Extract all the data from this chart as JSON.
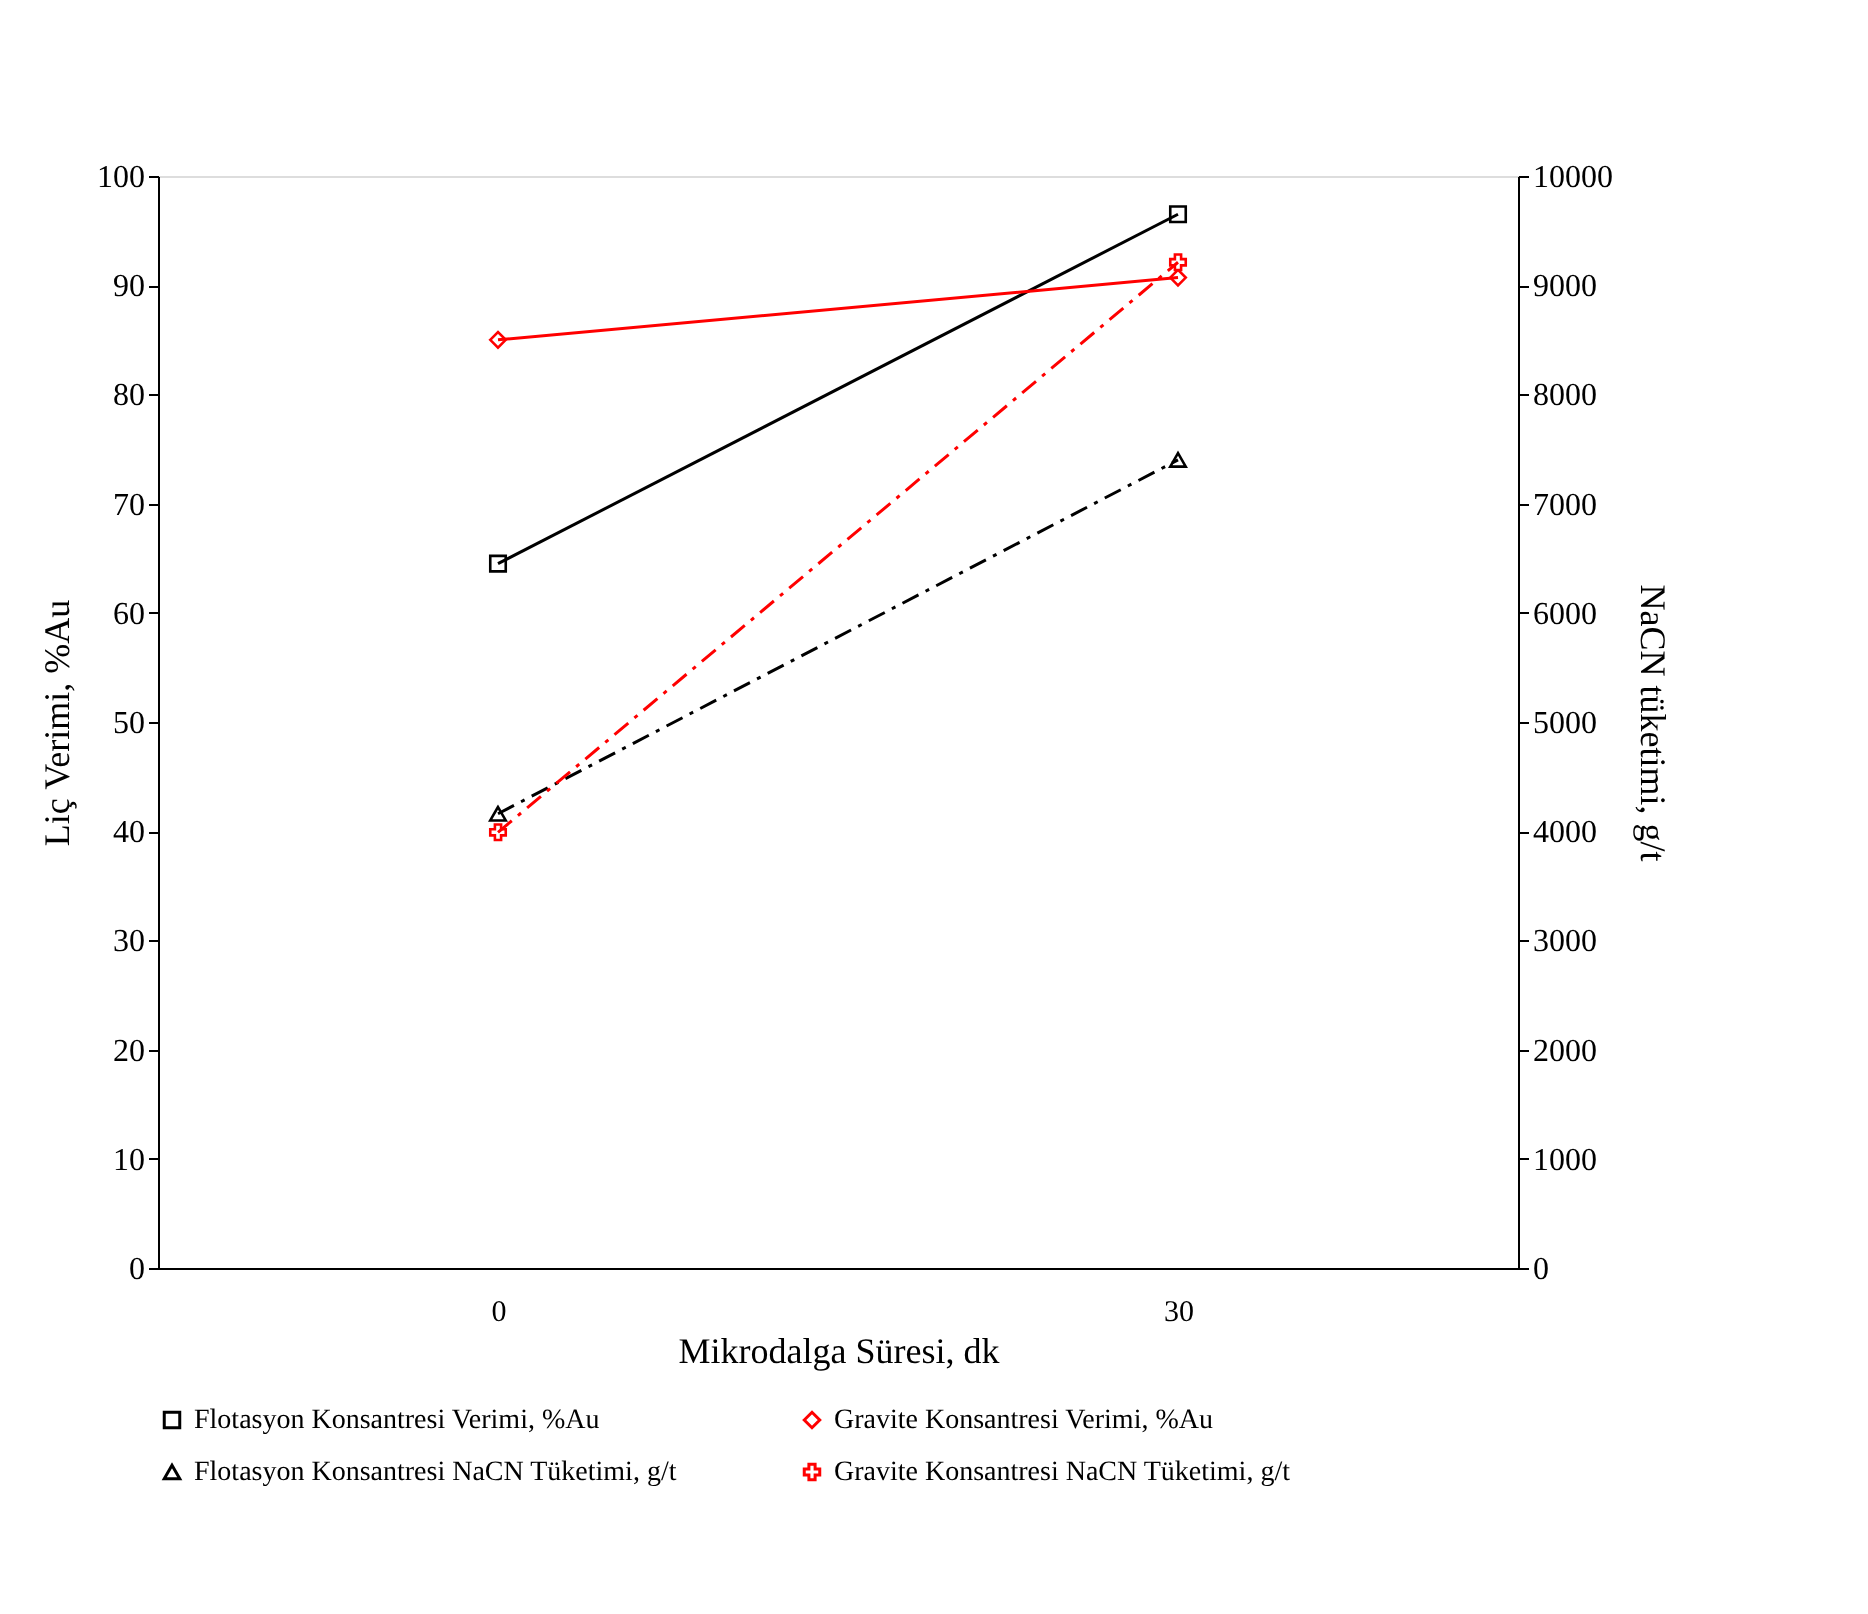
{
  "chart_data": {
    "type": "line",
    "xlabel": "Mikrodalga Süresi, dk",
    "ylabel": "Liç Verimi, %Au",
    "y2label": "NaCN tüketimi, g/t",
    "categories": [
      "0",
      "30"
    ],
    "series": [
      {
        "name": "Flotasyon Konsantresi Verimi, %Au",
        "color": "#000000",
        "values": [
          64.5,
          96.5
        ],
        "marker": "square",
        "line_style": "solid"
      },
      {
        "name": "Gravite Konsantresi Verimi, %Au",
        "color": "#ff0000",
        "values": [
          85,
          90.7
        ],
        "marker": "diamond",
        "line_style": "solid"
      },
      {
        "name": "Flotasyon Konsantresi NaCN Tüketimi, g/t",
        "color": "#000000",
        "values": [
          4160,
          7400
        ],
        "marker": "triangle",
        "line_style": "dashed",
        "axis": "y2"
      },
      {
        "name": "Gravite Konsantresi NaCN Tüketimi, g/t",
        "color": "#ff0000",
        "values": [
          3990,
          9210
        ],
        "marker": "cross",
        "line_style": "dashed",
        "axis": "y2"
      }
    ],
    "ylim": [
      0,
      100
    ],
    "yticks": [
      0,
      10,
      20,
      30,
      40,
      50,
      60,
      70,
      80,
      90,
      100
    ],
    "y2lim": [
      0,
      10000
    ],
    "y2ticks": [
      0,
      1000,
      2000,
      3000,
      4000,
      5000,
      6000,
      7000,
      8000,
      9000,
      10000
    ],
    "grid": false,
    "legend": "bottom"
  }
}
